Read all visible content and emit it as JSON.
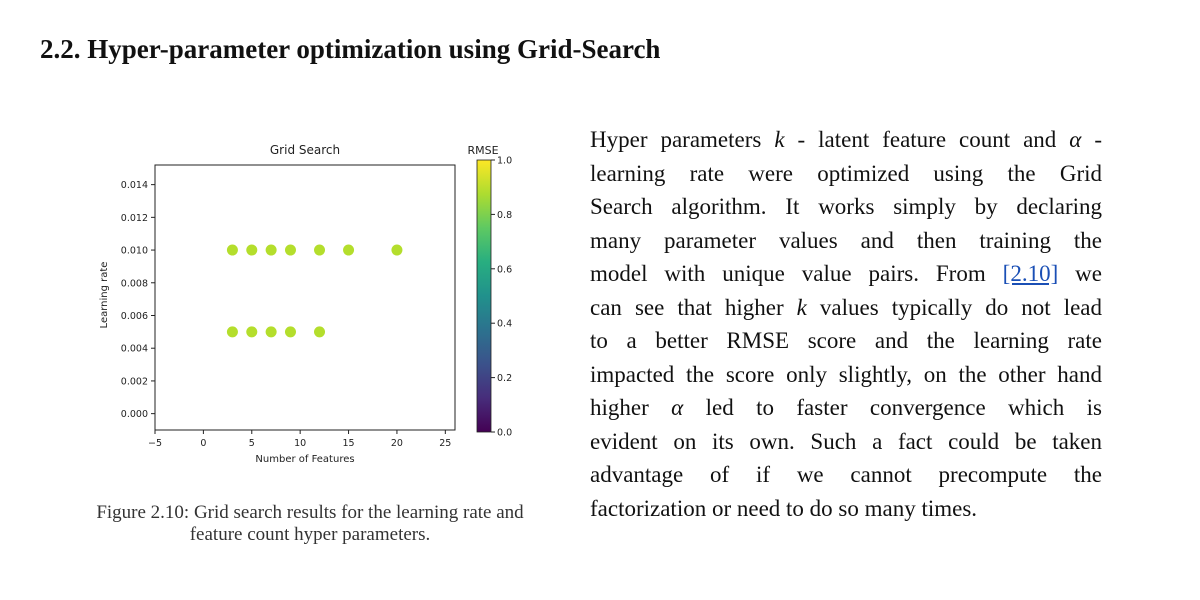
{
  "section": {
    "heading": "2.2. Hyper-parameter optimization using Grid-Search"
  },
  "figure": {
    "caption_line1": "Figure 2.10: Grid search results for the learning rate and",
    "caption_line2": "feature count hyper parameters."
  },
  "paragraph": {
    "l1a": "Hyper parameters ",
    "l1k": "k",
    "l1b": " - latent feature count and ",
    "l1alpha": "α",
    "l1c": " -",
    "l2": "learning rate were optimized using the Grid",
    "l3": "Search algorithm. It works simply by declaring",
    "l4": "many parameter values and then training the",
    "l5a": "model with unique value pairs. From ",
    "l5ref": "[2.10]",
    "l5b": " we",
    "l6a": "can see that higher ",
    "l6k": "k",
    "l6b": " values typically do not lead",
    "l7": "to a better RMSE score and the learning rate",
    "l8": "impacted the score only slightly, on the other hand",
    "l9a": "higher ",
    "l9alpha": "α",
    "l9b": " led to faster convergence which is",
    "l10": "evident on its own. Such a fact could be taken",
    "l11": "advantage of if we cannot precompute the",
    "l12": "factorization or need to do so many times."
  },
  "chart_data": {
    "type": "scatter",
    "title": "Grid Search",
    "xlabel": "Number of Features",
    "ylabel": "Learning rate",
    "xlim": [
      -5,
      26
    ],
    "ylim": [
      -0.001,
      0.0152
    ],
    "xticks": [
      -5,
      0,
      5,
      10,
      15,
      20,
      25
    ],
    "xtick_labels": [
      "−5",
      "0",
      "5",
      "10",
      "15",
      "20",
      "25"
    ],
    "yticks": [
      0.0,
      0.002,
      0.004,
      0.006,
      0.008,
      0.01,
      0.012,
      0.014
    ],
    "ytick_labels": [
      "0.000",
      "0.002",
      "0.004",
      "0.006",
      "0.008",
      "0.010",
      "0.012",
      "0.014"
    ],
    "colorbar": {
      "label": "RMSE",
      "range": [
        0.0,
        1.0
      ],
      "ticks": [
        0.0,
        0.2,
        0.4,
        0.6,
        0.8,
        1.0
      ],
      "tick_labels": [
        "0.0",
        "0.2",
        "0.4",
        "0.6",
        "0.8",
        "1.0"
      ],
      "colormap": "viridis"
    },
    "points": [
      {
        "x": 3,
        "y": 0.01,
        "c": 0.89
      },
      {
        "x": 5,
        "y": 0.01,
        "c": 0.89
      },
      {
        "x": 7,
        "y": 0.01,
        "c": 0.89
      },
      {
        "x": 9,
        "y": 0.01,
        "c": 0.89
      },
      {
        "x": 12,
        "y": 0.01,
        "c": 0.89
      },
      {
        "x": 15,
        "y": 0.01,
        "c": 0.89
      },
      {
        "x": 20,
        "y": 0.01,
        "c": 0.89
      },
      {
        "x": 3,
        "y": 0.005,
        "c": 0.89
      },
      {
        "x": 5,
        "y": 0.005,
        "c": 0.89
      },
      {
        "x": 7,
        "y": 0.005,
        "c": 0.89
      },
      {
        "x": 9,
        "y": 0.005,
        "c": 0.89
      },
      {
        "x": 12,
        "y": 0.005,
        "c": 0.89
      }
    ],
    "point_color": "#b4de2c",
    "grid": false
  }
}
